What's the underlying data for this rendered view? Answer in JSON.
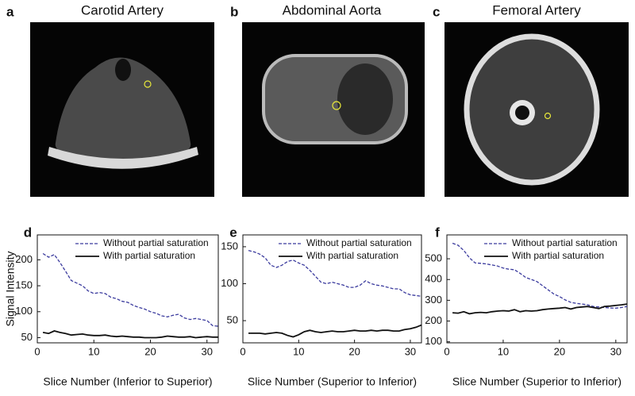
{
  "panels": [
    {
      "label": "a",
      "title": "Carotid Artery"
    },
    {
      "label": "b",
      "title": "Abdominal Aorta"
    },
    {
      "label": "c",
      "title": "Femoral Artery"
    }
  ],
  "chart_data": [
    {
      "type": "line",
      "panel_label": "d",
      "ylabel": "Signal Intensity",
      "xlabel": "Slice Number (Inferior to Superior)",
      "x": [
        1,
        2,
        3,
        4,
        5,
        6,
        7,
        8,
        9,
        10,
        11,
        12,
        13,
        14,
        15,
        16,
        17,
        18,
        19,
        20,
        21,
        22,
        23,
        24,
        25,
        26,
        27,
        28,
        29,
        30,
        31,
        32
      ],
      "xlim": [
        0,
        32
      ],
      "xticks": [
        0,
        10,
        20,
        30
      ],
      "ylim": [
        40,
        248
      ],
      "yticks": [
        50,
        100,
        150,
        200
      ],
      "legend": "upper right",
      "series": [
        {
          "name": "Without partial saturation",
          "color": "#3b3b9e",
          "line_style": "dashed",
          "values": [
            212,
            205,
            210,
            195,
            178,
            160,
            155,
            150,
            140,
            135,
            137,
            135,
            128,
            125,
            120,
            118,
            112,
            108,
            105,
            100,
            97,
            92,
            90,
            93,
            95,
            88,
            85,
            87,
            85,
            83,
            73,
            72
          ]
        },
        {
          "name": "With partial saturation",
          "color": "#111111",
          "line_style": "solid",
          "values": [
            60,
            58,
            63,
            60,
            58,
            55,
            56,
            57,
            55,
            54,
            54,
            55,
            53,
            52,
            53,
            52,
            51,
            51,
            50,
            50,
            50,
            51,
            53,
            52,
            51,
            51,
            52,
            50,
            51,
            52,
            51,
            51
          ]
        }
      ]
    },
    {
      "type": "line",
      "panel_label": "e",
      "xlabel": "Slice Number (Superior to Inferior)",
      "x": [
        1,
        2,
        3,
        4,
        5,
        6,
        7,
        8,
        9,
        10,
        11,
        12,
        13,
        14,
        15,
        16,
        17,
        18,
        19,
        20,
        21,
        22,
        23,
        24,
        25,
        26,
        27,
        28,
        29,
        30,
        31,
        32
      ],
      "xlim": [
        0,
        32
      ],
      "xticks": [
        0,
        10,
        20,
        30
      ],
      "ylim": [
        20,
        166
      ],
      "yticks": [
        50,
        100,
        150
      ],
      "legend": "upper right",
      "series": [
        {
          "name": "Without partial saturation",
          "color": "#3b3b9e",
          "line_style": "dashed",
          "values": [
            145,
            143,
            140,
            135,
            125,
            122,
            125,
            130,
            132,
            128,
            125,
            118,
            110,
            102,
            100,
            102,
            100,
            98,
            95,
            95,
            98,
            104,
            100,
            98,
            97,
            95,
            93,
            93,
            88,
            85,
            84,
            83
          ]
        },
        {
          "name": "With partial saturation",
          "color": "#111111",
          "line_style": "solid",
          "values": [
            33,
            33,
            33,
            32,
            33,
            34,
            33,
            30,
            28,
            31,
            35,
            37,
            35,
            34,
            35,
            36,
            35,
            35,
            36,
            37,
            36,
            36,
            37,
            36,
            37,
            37,
            36,
            36,
            38,
            39,
            41,
            44
          ]
        }
      ]
    },
    {
      "type": "line",
      "panel_label": "f",
      "xlabel": "Slice Number (Superior to Inferior)",
      "x": [
        1,
        2,
        3,
        4,
        5,
        6,
        7,
        8,
        9,
        10,
        11,
        12,
        13,
        14,
        15,
        16,
        17,
        18,
        19,
        20,
        21,
        22,
        23,
        24,
        25,
        26,
        27,
        28,
        29,
        30,
        31,
        32
      ],
      "xlim": [
        0,
        32
      ],
      "xticks": [
        0,
        10,
        20,
        30
      ],
      "ylim": [
        95,
        615
      ],
      "yticks": [
        100,
        200,
        300,
        400,
        500
      ],
      "legend": "upper right",
      "series": [
        {
          "name": "Without partial saturation",
          "color": "#3b3b9e",
          "line_style": "dashed",
          "values": [
            575,
            565,
            540,
            505,
            480,
            478,
            475,
            470,
            465,
            455,
            450,
            447,
            430,
            410,
            400,
            390,
            370,
            350,
            330,
            318,
            302,
            290,
            285,
            282,
            278,
            270,
            268,
            265,
            263,
            262,
            265,
            270
          ]
        },
        {
          "name": "With partial saturation",
          "color": "#111111",
          "line_style": "solid",
          "values": [
            240,
            238,
            245,
            235,
            240,
            242,
            240,
            245,
            248,
            250,
            248,
            255,
            245,
            250,
            248,
            250,
            255,
            258,
            260,
            262,
            265,
            258,
            265,
            268,
            270,
            265,
            260,
            270,
            272,
            275,
            278,
            282
          ]
        }
      ]
    }
  ]
}
